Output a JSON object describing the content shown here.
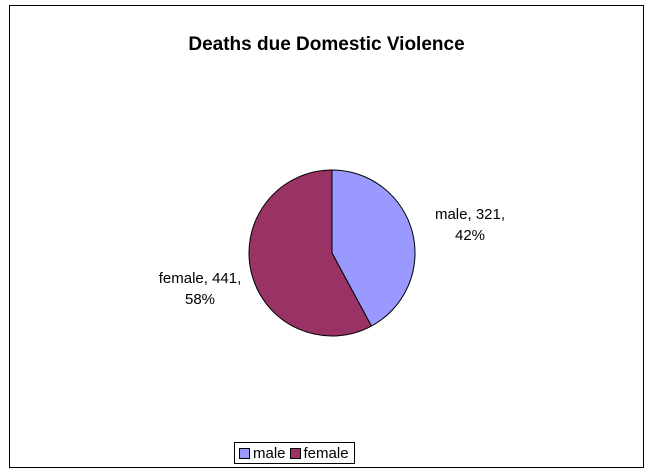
{
  "chart_data": {
    "type": "pie",
    "title": "Deaths due Domestic Violence",
    "categories": [
      "male",
      "female"
    ],
    "values": [
      321,
      441
    ],
    "percentages": [
      42,
      58
    ],
    "colors": [
      "#9999ff",
      "#993366"
    ],
    "data_labels": [
      {
        "line1": "male, 321,",
        "line2": "42%"
      },
      {
        "line1": "female, 441,",
        "line2": "58%"
      }
    ],
    "legend_position": "bottom"
  }
}
